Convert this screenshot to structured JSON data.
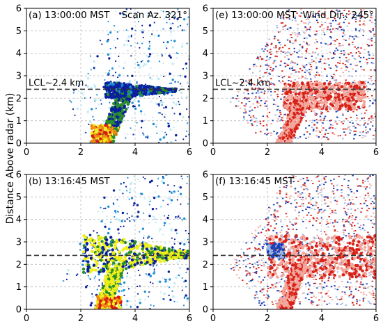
{
  "figure": {
    "ylabel": "Distance Above radar  (km)"
  },
  "chart_data": [
    {
      "id": "a",
      "type": "scatter",
      "field": "reflectivity",
      "title": "(a) 13:00:00 MST",
      "annotation": "Scan Az. 321°",
      "lcl_label": "LCL~2.4 km",
      "lcl_y": 2.4,
      "xlim": [
        0,
        6
      ],
      "ylim": [
        0,
        6
      ],
      "xticks": [
        0,
        2,
        4,
        6
      ],
      "yticks": [
        0,
        1,
        2,
        3,
        4,
        5,
        6
      ],
      "grid": true,
      "features": [
        {
          "kind": "layer",
          "x": [
            2.9,
            5.5
          ],
          "y": [
            2.0,
            2.7
          ],
          "level": "high"
        },
        {
          "kind": "column",
          "x_base": 2.9,
          "x_top": 3.6,
          "y": [
            0.0,
            2.1
          ],
          "level": "mid"
        },
        {
          "kind": "core",
          "x": [
            2.4,
            3.1
          ],
          "y": [
            0.0,
            0.8
          ],
          "level": "max"
        }
      ]
    },
    {
      "id": "e",
      "type": "scatter",
      "field": "radial_velocity",
      "title": "(e) 13:00:00 MST",
      "annotation": "Wind Dir.: 245°",
      "lcl_label": "LCL~2.4 km",
      "lcl_y": 2.4,
      "xlim": [
        0,
        6
      ],
      "ylim": [
        0,
        6
      ],
      "xticks": [
        0,
        2,
        4,
        6
      ],
      "yticks": [
        0,
        1,
        2,
        3,
        4,
        5,
        6
      ],
      "grid": true,
      "features": [
        {
          "kind": "plume",
          "x": [
            2.6,
            5.6
          ],
          "y": [
            1.5,
            2.7
          ],
          "sign": "receding"
        },
        {
          "kind": "column",
          "x_base": 2.6,
          "x_top": 3.3,
          "y": [
            0.0,
            2.0
          ],
          "sign": "receding"
        }
      ]
    },
    {
      "id": "b",
      "type": "scatter",
      "field": "reflectivity",
      "title": "(b) 13:16:45 MST",
      "annotation": "",
      "lcl_label": "",
      "lcl_y": 2.4,
      "xlim": [
        0,
        6
      ],
      "ylim": [
        0,
        6
      ],
      "xticks": [
        0,
        2,
        4,
        6
      ],
      "yticks": [
        0,
        1,
        2,
        3,
        4,
        5,
        6
      ],
      "grid": true,
      "features": [
        {
          "kind": "layer",
          "x": [
            2.1,
            6.0
          ],
          "y": [
            1.6,
            3.3
          ],
          "level": "high"
        },
        {
          "kind": "column",
          "x_base": 2.8,
          "x_top": 3.3,
          "y": [
            0.0,
            1.8
          ],
          "level": "high"
        },
        {
          "kind": "core",
          "x": [
            2.6,
            3.5
          ],
          "y": [
            0.0,
            0.6
          ],
          "level": "max"
        }
      ]
    },
    {
      "id": "f",
      "type": "scatter",
      "field": "radial_velocity",
      "title": "(f) 13:16:45 MST",
      "annotation": "",
      "lcl_label": "",
      "lcl_y": 2.4,
      "xlim": [
        0,
        6
      ],
      "ylim": [
        0,
        6
      ],
      "xticks": [
        0,
        2,
        4,
        6
      ],
      "yticks": [
        0,
        1,
        2,
        3,
        4,
        5,
        6
      ],
      "grid": true,
      "features": [
        {
          "kind": "plume",
          "x": [
            2.0,
            6.0
          ],
          "y": [
            1.4,
            3.3
          ],
          "sign": "receding"
        },
        {
          "kind": "column",
          "x_base": 2.6,
          "x_top": 3.2,
          "y": [
            0.0,
            2.0
          ],
          "sign": "receding"
        },
        {
          "kind": "patch",
          "x": [
            2.0,
            2.6
          ],
          "y": [
            2.3,
            2.9
          ],
          "sign": "approaching"
        }
      ]
    }
  ],
  "colors": {
    "refl_low": "#bfeaf2",
    "refl_mid": "#1f8fd6",
    "refl_high": "#0a1f9e",
    "refl_green": "#2a8c2a",
    "refl_yellow": "#f0ef1a",
    "refl_orange": "#f08a12",
    "refl_red": "#d81a12",
    "vel_red": "#d8231a",
    "vel_pink": "#f3a79c",
    "vel_blue": "#1a3fb5",
    "vel_lightblue": "#9fb4e0",
    "lcl_line": "#333333",
    "grid": "#bdbdbd"
  }
}
